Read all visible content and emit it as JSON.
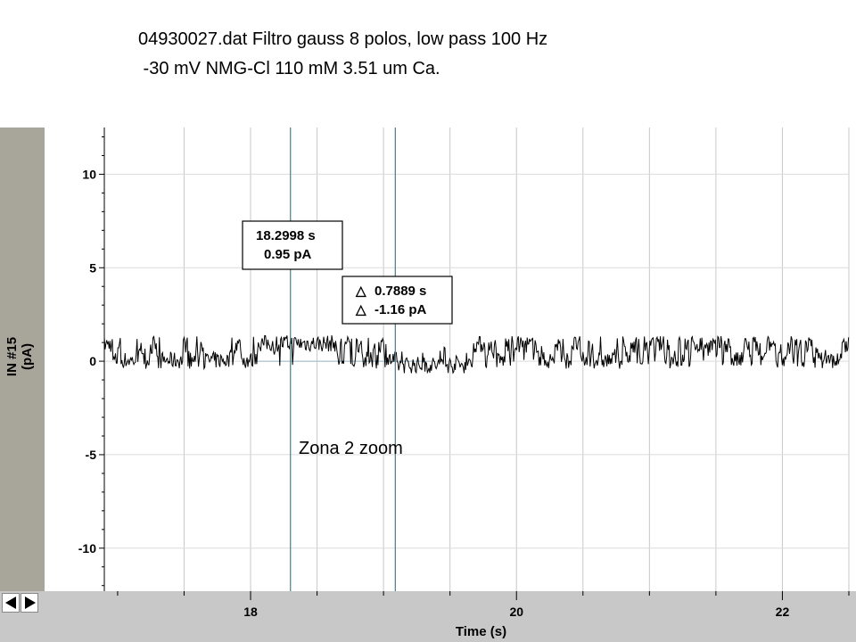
{
  "slide": {
    "title_line1": "04930027.dat Filtro gauss 8 polos, low pass 100 Hz",
    "title_line2": " -30 mV NMG-Cl 110 mM 3.51 um Ca."
  },
  "colors": {
    "panel": "#a8a59a",
    "trace": "#000000",
    "cursor": "#3f8ea4",
    "grid": "#c8c8c8"
  },
  "chart_data": {
    "type": "line",
    "title": "",
    "xlabel": "Time (s)",
    "ylabel_line1": "IN #15",
    "ylabel_line2": "(pA)",
    "xlim": [
      16.9,
      22.5
    ],
    "ylim": [
      -12.3,
      12.5
    ],
    "x_ticks": [
      18,
      20,
      22
    ],
    "y_ticks": [
      10,
      5,
      0,
      -5,
      -10
    ],
    "series": [
      {
        "description_levels": [
          {
            "x_start": 16.9,
            "x_end": 18.05,
            "level": "flicker 0 to 1"
          },
          {
            "x_start": 18.05,
            "x_end": 18.65,
            "level": 0.95
          },
          {
            "x_start": 18.65,
            "x_end": 19.1,
            "level": "flicker 0 to 1"
          },
          {
            "x_start": 19.1,
            "x_end": 19.65,
            "level": -0.2
          },
          {
            "x_start": 19.65,
            "x_end": 22.5,
            "level": "flicker 0 to 1"
          }
        ]
      }
    ],
    "cursors": [
      {
        "x": 18.2998,
        "y": 0.95
      },
      {
        "x": 19.0887,
        "y": -0.21
      }
    ],
    "readouts": {
      "cursor1_time": "18.2998 s",
      "cursor1_value": "0.95 pA",
      "delta_time": "0.7889 s",
      "delta_value": "-1.16 pA",
      "delta_symbol": "△"
    },
    "annotation": "Zona 2 zoom",
    "grid": true
  }
}
